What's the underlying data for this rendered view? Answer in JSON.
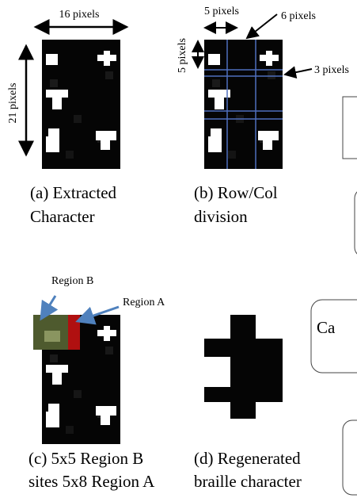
{
  "panels": [
    {
      "caption": [
        "(a) Extracted",
        "Character"
      ],
      "annotations": [
        "16 pixels",
        "21 pixels"
      ]
    },
    {
      "caption": [
        "(b) Row/Col",
        "division"
      ],
      "annotations": [
        "5 pixels",
        "5 pixels",
        "6 pixels",
        "3 pixels"
      ]
    },
    {
      "caption": [
        "(c) 5x5 Region B",
        "sites 5x8 Region A"
      ],
      "annotations": [
        "Region B",
        "Region A"
      ]
    },
    {
      "caption": [
        "(d) Regenerated",
        "braille character"
      ],
      "annotations": []
    }
  ],
  "side_boxes": [
    {
      "text": "Ca"
    }
  ]
}
